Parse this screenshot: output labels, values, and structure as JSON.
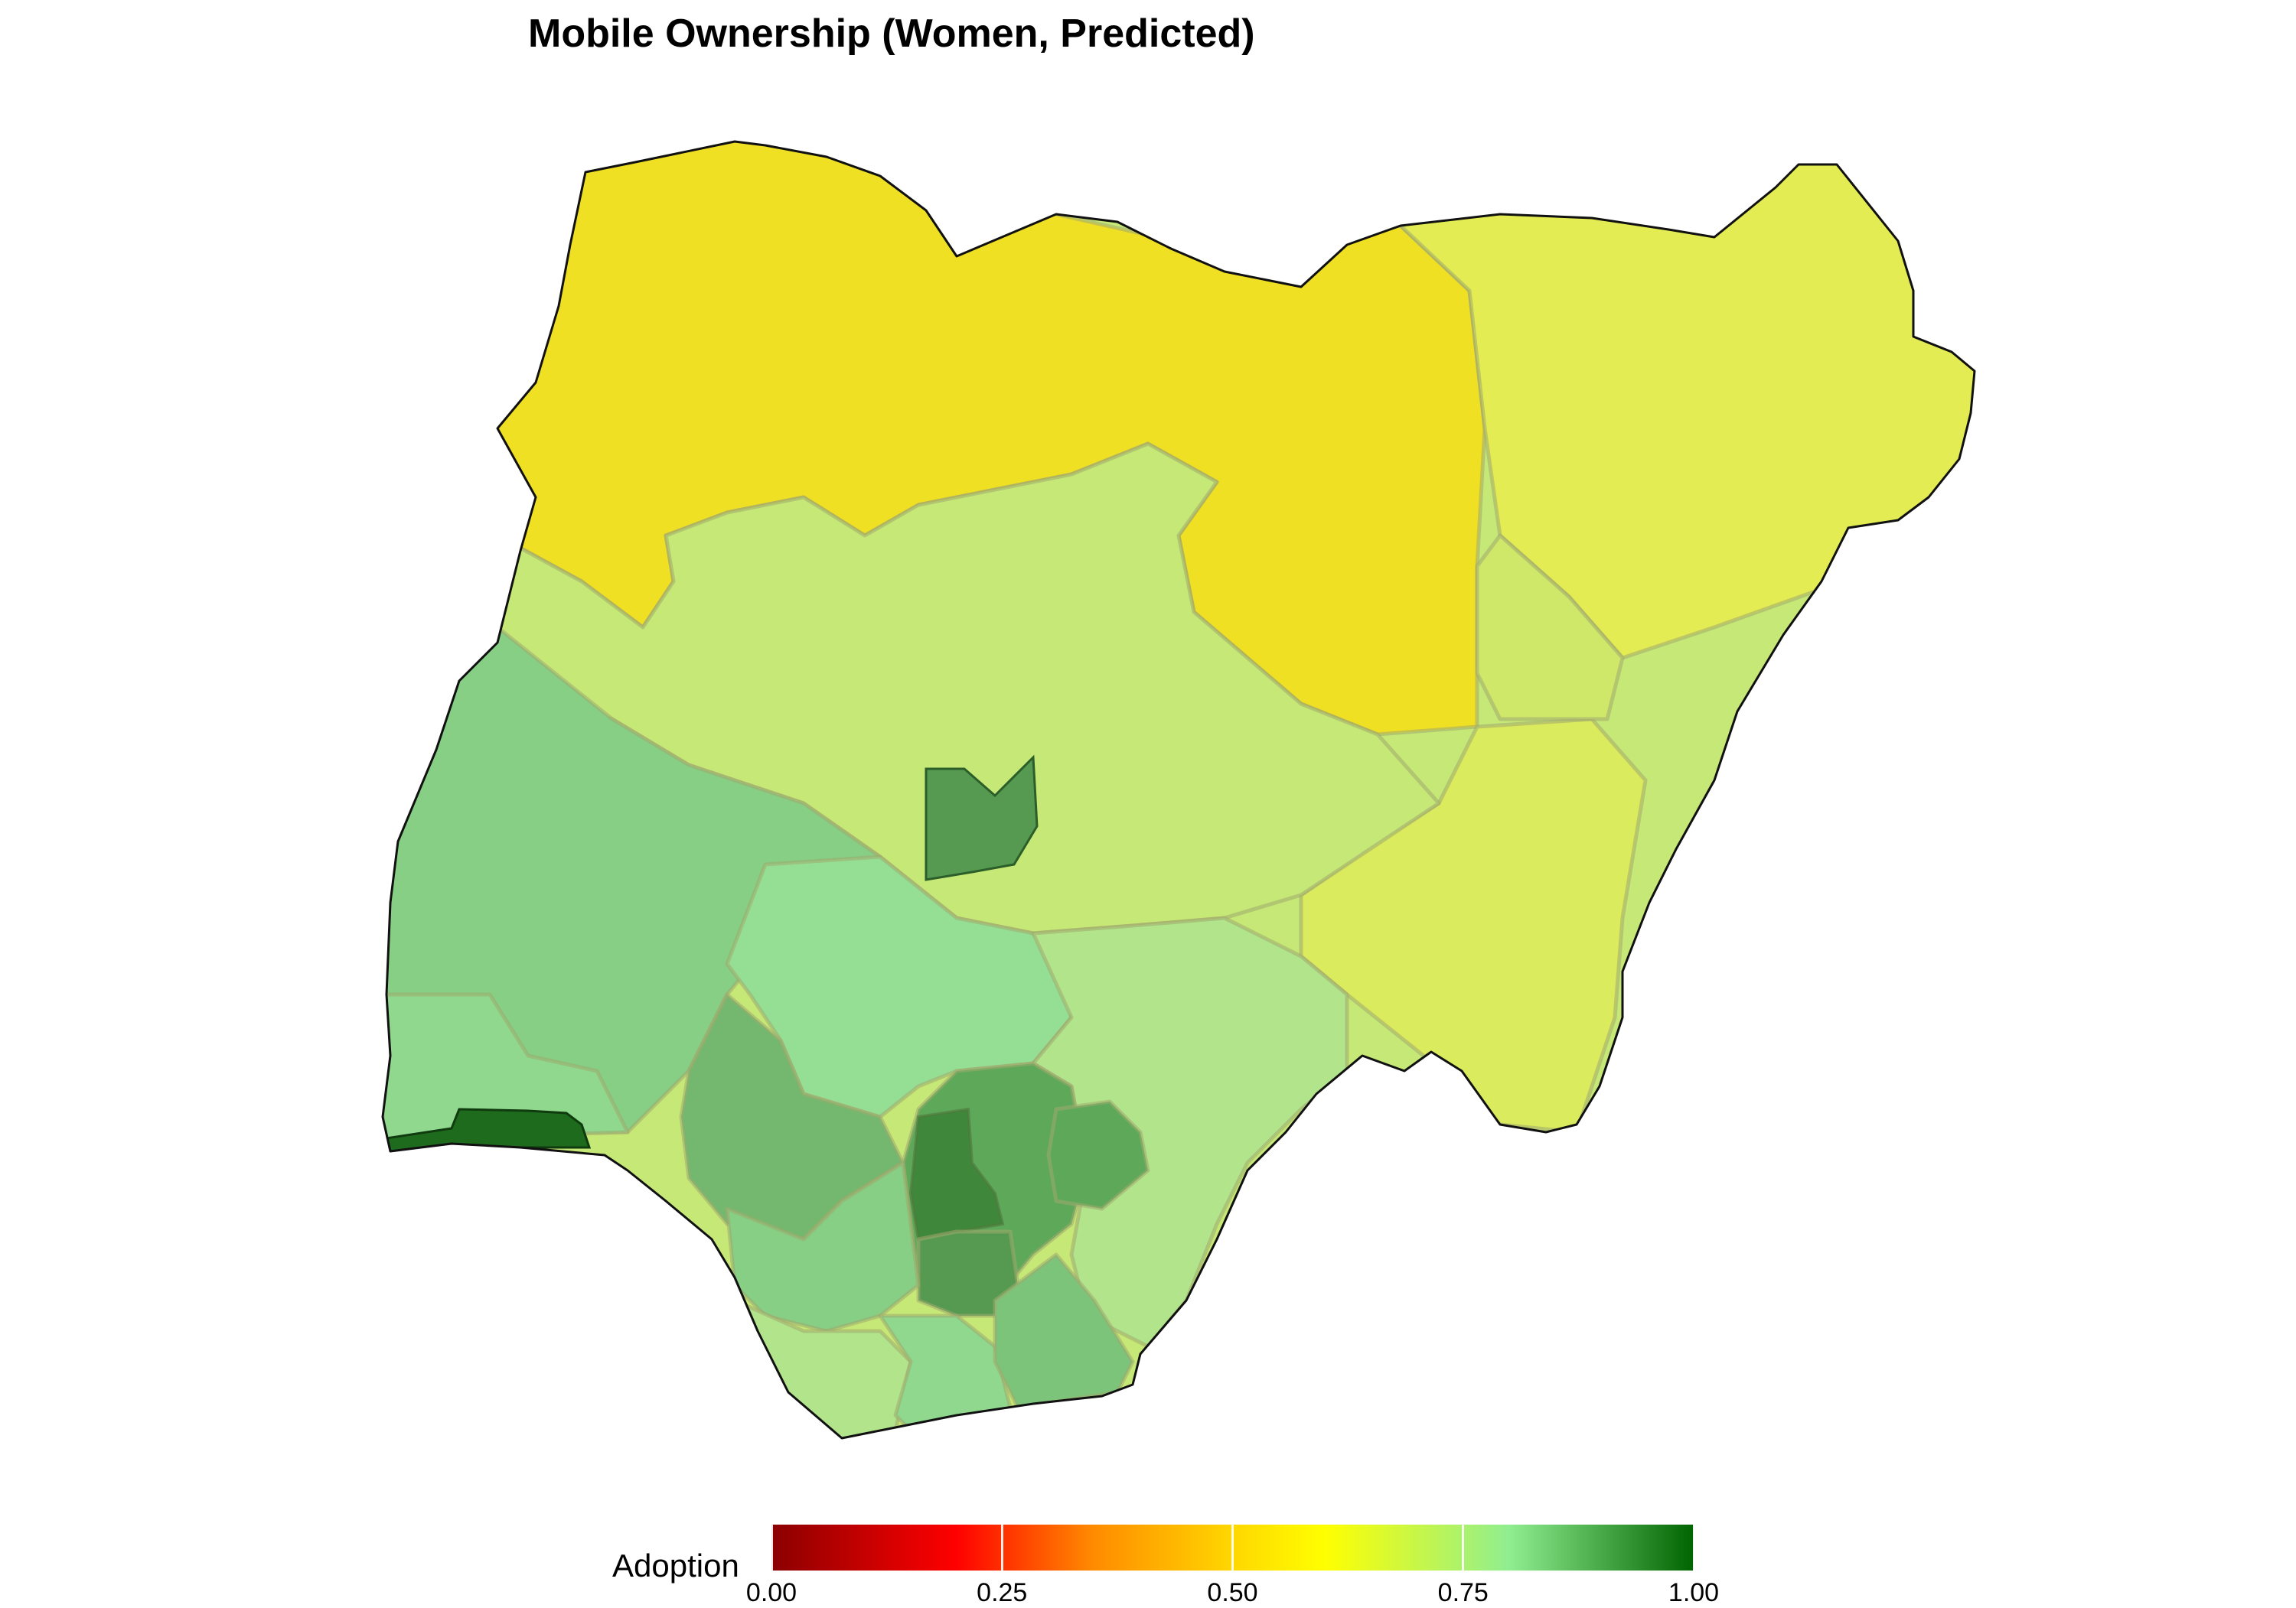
{
  "title": "Mobile Ownership (Women, Predicted)",
  "legend": {
    "label": "Adoption",
    "ticks": [
      "0.00",
      "0.25",
      "0.50",
      "0.75",
      "1.00"
    ],
    "range": [
      0,
      1
    ],
    "stops": [
      {
        "value": 0.0,
        "color": "#8b0000"
      },
      {
        "value": 0.2,
        "color": "#ff0000"
      },
      {
        "value": 0.35,
        "color": "#ff8c00"
      },
      {
        "value": 0.5,
        "color": "#ffd700"
      },
      {
        "value": 0.6,
        "color": "#ffff00"
      },
      {
        "value": 0.8,
        "color": "#90ee90"
      },
      {
        "value": 1.0,
        "color": "#006400"
      }
    ]
  },
  "colors": {
    "north_yellow": "#f0e024",
    "northeast_yellow_green": "#e3ec52",
    "middle_belt": "#c6e877",
    "southwest_green": "#86cf85",
    "southeast_green": "#5ea85a",
    "lagos_dark": "#1e6b1e",
    "south_south_light": "#b2e48b"
  }
}
